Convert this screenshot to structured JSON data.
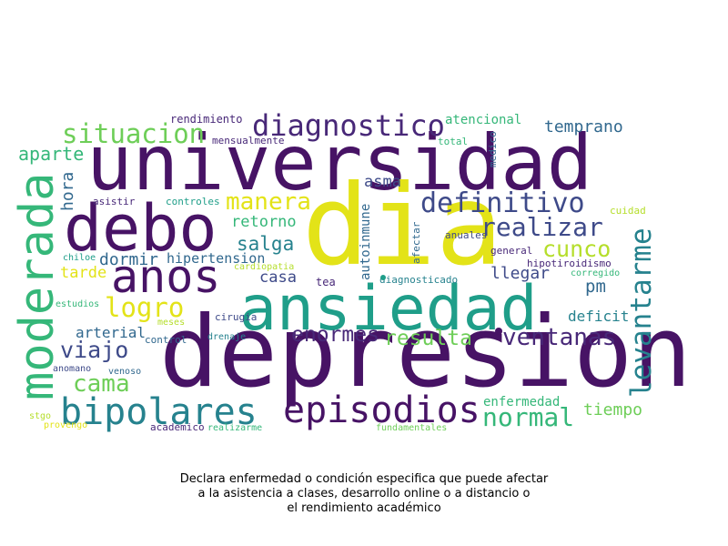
{
  "caption": {
    "line1": "Declara enfermedad o condición especifica que puede afectar",
    "line2": "a la asistencia a clases, desarrollo online o a distancio o",
    "line3": "el rendimiento académico"
  },
  "colors": {
    "dark_purple": "#471365",
    "purple": "#482878",
    "indigo": "#3e4a89",
    "blue": "#31688e",
    "teal_blue": "#26828e",
    "teal": "#1f9e89",
    "green": "#35b779",
    "light_green": "#6ece58",
    "lime": "#b5de2b",
    "yellow": "#e3e318"
  },
  "words": [
    {
      "text": "depresion",
      "color": "dark_purple"
    },
    {
      "text": "universidad",
      "color": "dark_purple"
    },
    {
      "text": "dia",
      "color": "yellow"
    },
    {
      "text": "ansiedad",
      "color": "teal"
    },
    {
      "text": "debo",
      "color": "dark_purple"
    },
    {
      "text": "moderada",
      "color": "green"
    },
    {
      "text": "anos",
      "color": "dark_purple"
    },
    {
      "text": "bipolares",
      "color": "teal_blue"
    },
    {
      "text": "episodios",
      "color": "dark_purple"
    },
    {
      "text": "diagnostico",
      "color": "purple"
    },
    {
      "text": "situacion",
      "color": "light_green"
    },
    {
      "text": "definitivo",
      "color": "indigo"
    },
    {
      "text": "realizar",
      "color": "indigo"
    },
    {
      "text": "levantarme",
      "color": "teal_blue"
    },
    {
      "text": "ventanas",
      "color": "purple"
    },
    {
      "text": "enormes",
      "color": "purple"
    },
    {
      "text": "resulta",
      "color": "light_green"
    },
    {
      "text": "normal",
      "color": "green"
    },
    {
      "text": "manera",
      "color": "yellow"
    },
    {
      "text": "cunco",
      "color": "lime"
    },
    {
      "text": "logro",
      "color": "yellow"
    },
    {
      "text": "viajo",
      "color": "indigo"
    },
    {
      "text": "cama",
      "color": "light_green"
    },
    {
      "text": "salga",
      "color": "teal_blue"
    },
    {
      "text": "retorno",
      "color": "green"
    },
    {
      "text": "dormir",
      "color": "blue"
    },
    {
      "text": "temprano",
      "color": "blue"
    },
    {
      "text": "aparte",
      "color": "green"
    },
    {
      "text": "hora",
      "color": "blue"
    },
    {
      "text": "tarde",
      "color": "yellow"
    },
    {
      "text": "arterial",
      "color": "blue"
    },
    {
      "text": "hipertension",
      "color": "blue"
    },
    {
      "text": "casa",
      "color": "indigo"
    },
    {
      "text": "asma",
      "color": "indigo"
    },
    {
      "text": "llegar",
      "color": "indigo"
    },
    {
      "text": "pm",
      "color": "blue"
    },
    {
      "text": "deficit",
      "color": "teal_blue"
    },
    {
      "text": "tiempo",
      "color": "light_green"
    },
    {
      "text": "enfermedad",
      "color": "green"
    },
    {
      "text": "autoinmune",
      "color": "blue"
    },
    {
      "text": "atencional",
      "color": "green"
    },
    {
      "text": "rendimiento",
      "color": "purple"
    },
    {
      "text": "mensualmente",
      "color": "purple"
    },
    {
      "text": "total",
      "color": "green"
    },
    {
      "text": "medico",
      "color": "blue"
    },
    {
      "text": "asistir",
      "color": "purple"
    },
    {
      "text": "controles",
      "color": "teal"
    },
    {
      "text": "cuidad",
      "color": "lime"
    },
    {
      "text": "anuales",
      "color": "indigo"
    },
    {
      "text": "afectar",
      "color": "blue"
    },
    {
      "text": "general",
      "color": "purple"
    },
    {
      "text": "hipotiroidismo",
      "color": "purple"
    },
    {
      "text": "corregido",
      "color": "green"
    },
    {
      "text": "chiloe",
      "color": "teal"
    },
    {
      "text": "cardiopatia",
      "color": "lime"
    },
    {
      "text": "tea",
      "color": "purple"
    },
    {
      "text": "diagnosticado",
      "color": "teal_blue"
    },
    {
      "text": "estudios",
      "color": "green"
    },
    {
      "text": "meses",
      "color": "lime"
    },
    {
      "text": "cirugia",
      "color": "indigo"
    },
    {
      "text": "control",
      "color": "blue"
    },
    {
      "text": "drenaje",
      "color": "teal_blue"
    },
    {
      "text": "anomano",
      "color": "indigo"
    },
    {
      "text": "venoso",
      "color": "blue"
    },
    {
      "text": "stgo",
      "color": "lime"
    },
    {
      "text": "provengo",
      "color": "yellow"
    },
    {
      "text": "academico",
      "color": "purple"
    },
    {
      "text": "realizarme",
      "color": "green"
    },
    {
      "text": "fundamentales",
      "color": "light_green"
    }
  ]
}
